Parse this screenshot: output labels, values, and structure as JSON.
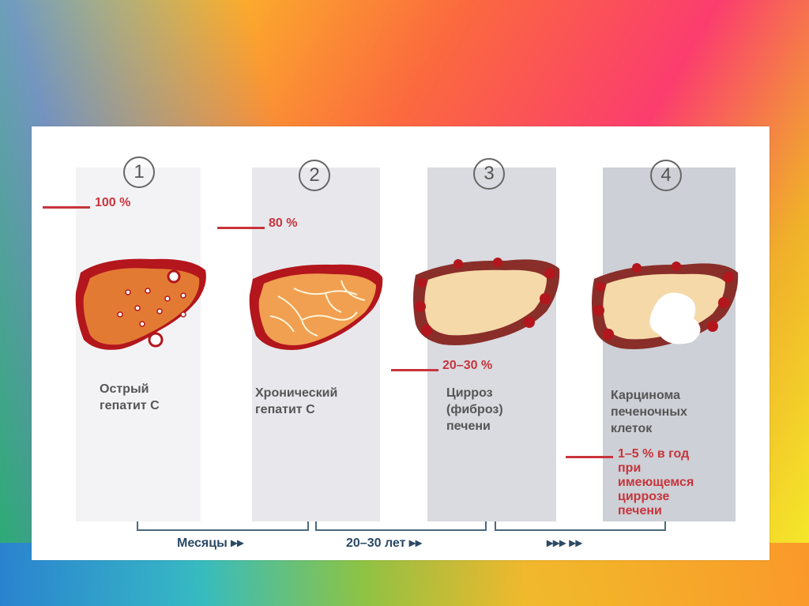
{
  "stages": [
    {
      "number": "1",
      "percent": "100 %",
      "label_line1": "Острый",
      "label_line2": "гепатит С"
    },
    {
      "number": "2",
      "percent": "80 %",
      "label_line1": "Хронический",
      "label_line2": "гепатит С"
    },
    {
      "number": "3",
      "percent": "20–30 %",
      "label_line1": "Цирроз",
      "label_line2": "(фиброз)",
      "label_line3": "печени"
    },
    {
      "number": "4",
      "label_line1": "Карцинома",
      "label_line2": "печеночных",
      "label_line3": "клеток",
      "risk_line1": "1–5 % в год",
      "risk_line2": "при",
      "risk_line3": "имеющемся",
      "risk_line4": "циррозе",
      "risk_line5": "печени"
    }
  ],
  "timeline": [
    "Месяцы  ▸▸",
    "20–30 лет  ▸▸",
    "▸▸▸  ▸▸"
  ],
  "colors": {
    "accent_red": "#c8343c",
    "text_gray": "#555555",
    "timeline_blue": "#2b4a66"
  }
}
